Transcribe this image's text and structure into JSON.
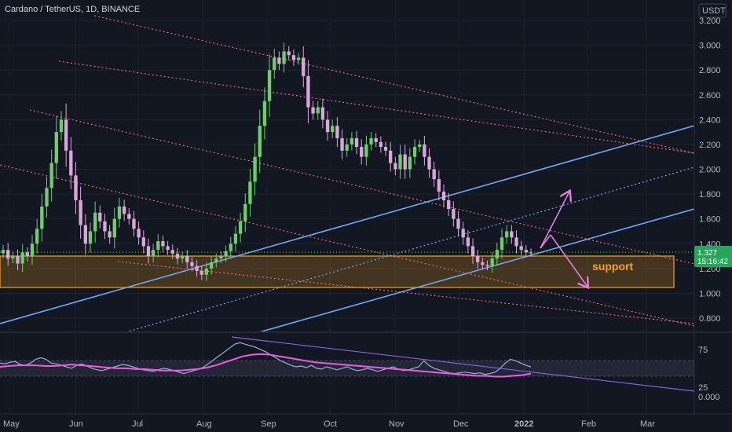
{
  "header": {
    "title": "Cardano / TetherUS, 1D, BINANCE",
    "currency": "USDT"
  },
  "price_axis": {
    "ticks": [
      "3.200",
      "3.000",
      "2.800",
      "2.600",
      "2.400",
      "2.200",
      "2.000",
      "1.800",
      "1.600",
      "1.400",
      "1.200",
      "1.000",
      "0.800"
    ],
    "current_price": "1.327",
    "countdown": "15:16:42"
  },
  "indicator_axis": {
    "ticks": [
      "75",
      "25",
      "0.000"
    ]
  },
  "time_axis": {
    "ticks": [
      "May",
      "Jun",
      "Jul",
      "Aug",
      "Sep",
      "Oct",
      "Nov",
      "Dec",
      "2022",
      "Feb",
      "Mar"
    ]
  },
  "annotations": {
    "support_label": "support"
  },
  "colors": {
    "background": "#131722",
    "up_candle": "#6bd06b",
    "down_candle": "#d8a9d8",
    "channel_line": "#f26d7d",
    "trend_line": "#6fa8f5",
    "support_zone": "#f7a21b",
    "arrow": "#e27fdc",
    "rsi_line": "#8fb4d8",
    "rsi_ma": "#f15ae0",
    "rsi_trend": "#8a62e0"
  },
  "chart_data": [
    {
      "type": "candlestick",
      "title": "Cardano / TetherUS, 1D, BINANCE",
      "ylim": [
        0.75,
        3.25
      ],
      "x_ticks": [
        "May",
        "Jun",
        "Jul",
        "Aug",
        "Sep",
        "Oct",
        "Nov",
        "Dec",
        "2022",
        "Feb",
        "Mar"
      ],
      "series": [
        {
          "values": [
            1.35,
            1.28,
            1.3,
            1.24,
            1.33,
            1.3,
            1.4,
            1.52,
            1.7,
            1.85,
            2.05,
            2.3,
            2.4,
            2.15,
            1.95,
            1.75,
            1.55,
            1.4,
            1.5,
            1.65,
            1.58,
            1.5,
            1.45,
            1.6,
            1.7,
            1.64,
            1.6,
            1.52,
            1.45,
            1.38,
            1.3,
            1.35,
            1.42,
            1.38,
            1.35,
            1.32,
            1.28,
            1.3,
            1.25,
            1.22,
            1.18,
            1.15,
            1.2,
            1.25,
            1.28,
            1.3,
            1.34,
            1.4,
            1.48,
            1.58,
            1.72,
            1.9,
            2.1,
            2.35,
            2.55,
            2.8,
            2.9,
            2.85,
            2.95,
            2.92,
            2.88,
            2.9,
            2.75,
            2.5,
            2.45,
            2.5,
            2.4,
            2.3,
            2.35,
            2.25,
            2.15,
            2.2,
            2.25,
            2.18,
            2.1,
            2.2,
            2.25,
            2.22,
            2.18,
            2.15,
            2.05,
            2.0,
            2.12,
            2.0,
            2.1,
            2.18,
            2.2,
            2.1,
            2.0,
            1.92,
            1.82,
            1.75,
            1.68,
            1.6,
            1.52,
            1.45,
            1.38,
            1.3,
            1.25,
            1.23,
            1.22,
            1.28,
            1.35,
            1.45,
            1.5,
            1.45,
            1.38,
            1.35,
            1.33,
            1.327
          ]
        }
      ],
      "annotations": [
        "support"
      ],
      "support_zone": [
        1.05,
        1.3
      ]
    },
    {
      "type": "line",
      "title": "",
      "ylim": [
        0,
        100
      ],
      "y_ticks": [
        75,
        25,
        0
      ],
      "band": [
        45,
        65
      ],
      "series": [
        {
          "values": [
            55,
            54,
            56,
            57,
            53,
            52,
            55,
            60,
            62,
            60,
            55,
            54,
            52,
            50,
            48,
            52,
            54,
            51,
            48,
            46,
            45,
            47,
            49,
            51,
            53,
            52,
            50,
            48,
            46,
            45,
            44,
            46,
            48,
            47,
            45,
            43,
            41,
            43,
            45,
            47,
            50,
            55,
            60,
            65,
            70,
            75,
            80,
            82,
            80,
            78,
            76,
            73,
            70,
            66,
            62,
            58,
            55,
            52,
            50,
            51,
            49,
            52,
            48,
            47,
            50,
            48,
            46,
            48,
            50,
            47,
            45,
            46,
            48,
            46,
            44,
            46,
            48,
            50,
            47,
            45,
            46,
            48,
            50,
            58,
            52,
            48,
            46,
            44,
            42,
            41,
            42,
            43,
            42,
            41,
            42,
            40,
            41,
            43,
            48,
            55,
            60,
            58,
            55,
            52,
            50
          ]
        },
        {
          "values": [
            50,
            51,
            52,
            52,
            52,
            51,
            51,
            52,
            53,
            52,
            51,
            50,
            49,
            48,
            48,
            47,
            47,
            46,
            45,
            45,
            45,
            46,
            47,
            49,
            52,
            56,
            60,
            64,
            66,
            67,
            66,
            64,
            62,
            60,
            58,
            56,
            55,
            54,
            53,
            52,
            51,
            50,
            49,
            48,
            47,
            46,
            45,
            44,
            43,
            42,
            41,
            40,
            39,
            38,
            38,
            37,
            37,
            38,
            39,
            41
          ]
        }
      ]
    }
  ]
}
